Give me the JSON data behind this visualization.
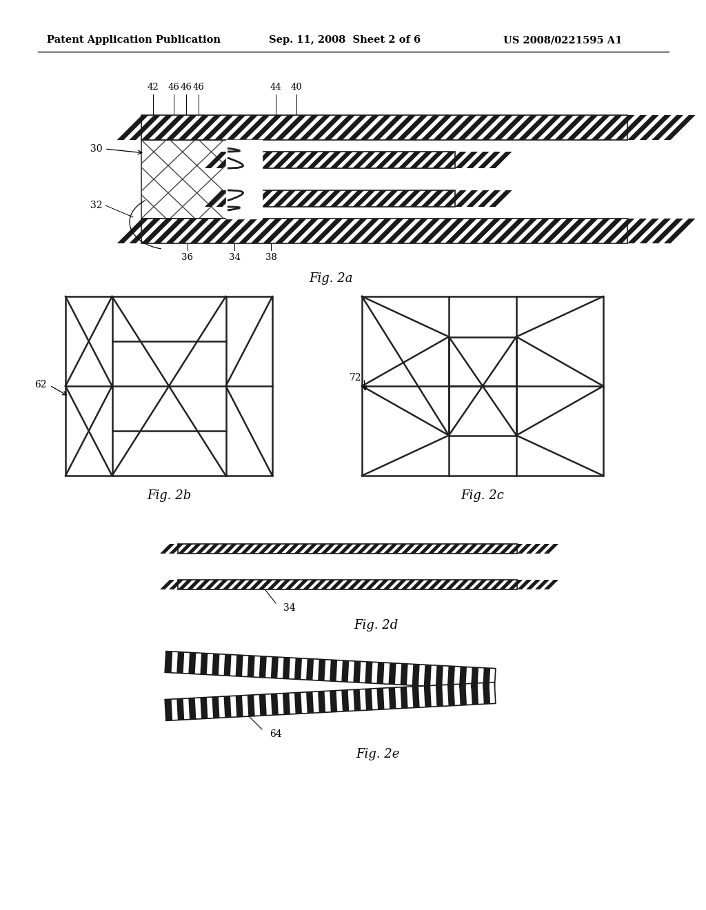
{
  "bg_color": "#ffffff",
  "header_left": "Patent Application Publication",
  "header_mid": "Sep. 11, 2008  Sheet 2 of 6",
  "header_right": "US 2008/0221595 A1",
  "fig2a_label": "Fig. 2a",
  "fig2b_label": "Fig. 2b",
  "fig2c_label": "Fig. 2c",
  "fig2d_label": "Fig. 2d",
  "fig2e_label": "Fig. 2e",
  "label_30": "30",
  "label_32": "32",
  "label_36": "36",
  "label_34": "34",
  "label_38": "38",
  "label_40": "40",
  "label_42": "42",
  "label_44": "44",
  "label_46a": "46",
  "label_46b": "46",
  "label_46c": "46",
  "label_62": "62",
  "label_72": "72",
  "label_34d": "34",
  "label_64": "64"
}
